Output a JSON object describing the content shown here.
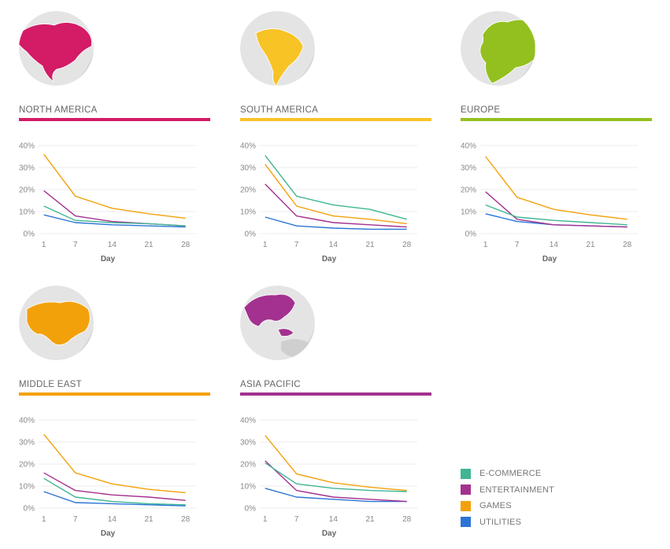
{
  "colors": {
    "series": [
      "#3fb594",
      "#a3318f",
      "#f3a10b",
      "#2b74d6"
    ],
    "globe_base": "#e4e4e4",
    "globe_shade": "#cfcfcf"
  },
  "legend": {
    "items": [
      {
        "label": "E-COMMERCE",
        "color": "#3fb594"
      },
      {
        "label": "ENTERTAINMENT",
        "color": "#a3318f"
      },
      {
        "label": "GAMES",
        "color": "#f3a10b"
      },
      {
        "label": "UTILITIES",
        "color": "#2b74d6"
      }
    ]
  },
  "regions": [
    {
      "title": "NORTH AMERICA",
      "color": "#d31b66",
      "map_icon": "north-america-globe-icon"
    },
    {
      "title": "SOUTH AMERICA",
      "color": "#f7c325",
      "map_icon": "south-america-globe-icon"
    },
    {
      "title": "EUROPE",
      "color": "#93c01f",
      "map_icon": "europe-globe-icon"
    },
    {
      "title": "MIDDLE EAST",
      "color": "#f3a10b",
      "map_icon": "middle-east-globe-icon"
    },
    {
      "title": "ASIA PACIFIC",
      "color": "#a3318f",
      "map_icon": "asia-pacific-globe-icon"
    }
  ],
  "chart_data": [
    {
      "type": "line",
      "title": "NORTH AMERICA",
      "xlabel": "Day",
      "ylabel": "",
      "x": [
        1,
        7,
        14,
        21,
        28
      ],
      "ylim": [
        0,
        40
      ],
      "yticks": [
        "0%",
        "10%",
        "20%",
        "30%",
        "40%"
      ],
      "xticks": [
        "1",
        "7",
        "14",
        "21",
        "28"
      ],
      "grid": true,
      "series": [
        {
          "name": "E-COMMERCE",
          "values": [
            12.5,
            6,
            5,
            4.5,
            3.5
          ]
        },
        {
          "name": "ENTERTAINMENT",
          "values": [
            19.5,
            8,
            5.5,
            4.5,
            3.5
          ]
        },
        {
          "name": "GAMES",
          "values": [
            36,
            17,
            11.5,
            9,
            7
          ]
        },
        {
          "name": "UTILITIES",
          "values": [
            8.5,
            5,
            4,
            3.5,
            3
          ]
        }
      ]
    },
    {
      "type": "line",
      "title": "SOUTH AMERICA",
      "xlabel": "Day",
      "ylabel": "",
      "x": [
        1,
        7,
        14,
        21,
        28
      ],
      "ylim": [
        0,
        40
      ],
      "yticks": [
        "0%",
        "10%",
        "20%",
        "30%",
        "40%"
      ],
      "xticks": [
        "1",
        "7",
        "14",
        "21",
        "28"
      ],
      "grid": true,
      "series": [
        {
          "name": "E-COMMERCE",
          "values": [
            35.5,
            17,
            13,
            11,
            6.5
          ]
        },
        {
          "name": "ENTERTAINMENT",
          "values": [
            22.5,
            8,
            5,
            4,
            3
          ]
        },
        {
          "name": "GAMES",
          "values": [
            31.5,
            12.5,
            8,
            6.5,
            4.5
          ]
        },
        {
          "name": "UTILITIES",
          "values": [
            7.5,
            3.5,
            2.5,
            2,
            2
          ]
        }
      ]
    },
    {
      "type": "line",
      "title": "EUROPE",
      "xlabel": "Day",
      "ylabel": "",
      "x": [
        1,
        7,
        14,
        21,
        28
      ],
      "ylim": [
        0,
        40
      ],
      "yticks": [
        "0%",
        "10%",
        "20%",
        "30%",
        "40%"
      ],
      "xticks": [
        "1",
        "7",
        "14",
        "21",
        "28"
      ],
      "grid": true,
      "series": [
        {
          "name": "E-COMMERCE",
          "values": [
            13,
            7.5,
            6,
            5,
            4
          ]
        },
        {
          "name": "ENTERTAINMENT",
          "values": [
            19,
            6.5,
            4,
            3.5,
            3
          ]
        },
        {
          "name": "GAMES",
          "values": [
            35,
            16.5,
            11,
            8.5,
            6.5
          ]
        },
        {
          "name": "UTILITIES",
          "values": [
            9,
            5.5,
            4,
            3.5,
            3
          ]
        }
      ]
    },
    {
      "type": "line",
      "title": "MIDDLE EAST",
      "xlabel": "Day",
      "ylabel": "",
      "x": [
        1,
        7,
        14,
        21,
        28
      ],
      "ylim": [
        0,
        40
      ],
      "yticks": [
        "0%",
        "10%",
        "20%",
        "30%",
        "40%"
      ],
      "xticks": [
        "1",
        "7",
        "14",
        "21",
        "28"
      ],
      "grid": true,
      "series": [
        {
          "name": "E-COMMERCE",
          "values": [
            13.5,
            5,
            3,
            2,
            1.5
          ]
        },
        {
          "name": "ENTERTAINMENT",
          "values": [
            16,
            8,
            6,
            5,
            3.5
          ]
        },
        {
          "name": "GAMES",
          "values": [
            33.5,
            16,
            11,
            8.5,
            7
          ]
        },
        {
          "name": "UTILITIES",
          "values": [
            7.5,
            2.5,
            2,
            1.5,
            1
          ]
        }
      ]
    },
    {
      "type": "line",
      "title": "ASIA PACIFIC",
      "xlabel": "Day",
      "ylabel": "",
      "x": [
        1,
        7,
        14,
        21,
        28
      ],
      "ylim": [
        0,
        40
      ],
      "yticks": [
        "0%",
        "10%",
        "20%",
        "30%",
        "40%"
      ],
      "xticks": [
        "1",
        "7",
        "14",
        "21",
        "28"
      ],
      "grid": true,
      "series": [
        {
          "name": "E-COMMERCE",
          "values": [
            20.5,
            11,
            9,
            8,
            7.5
          ]
        },
        {
          "name": "ENTERTAINMENT",
          "values": [
            21.5,
            8,
            5,
            4,
            3
          ]
        },
        {
          "name": "GAMES",
          "values": [
            33,
            15.5,
            11.5,
            9.5,
            8
          ]
        },
        {
          "name": "UTILITIES",
          "values": [
            9,
            5,
            4,
            3,
            3
          ]
        }
      ]
    }
  ]
}
